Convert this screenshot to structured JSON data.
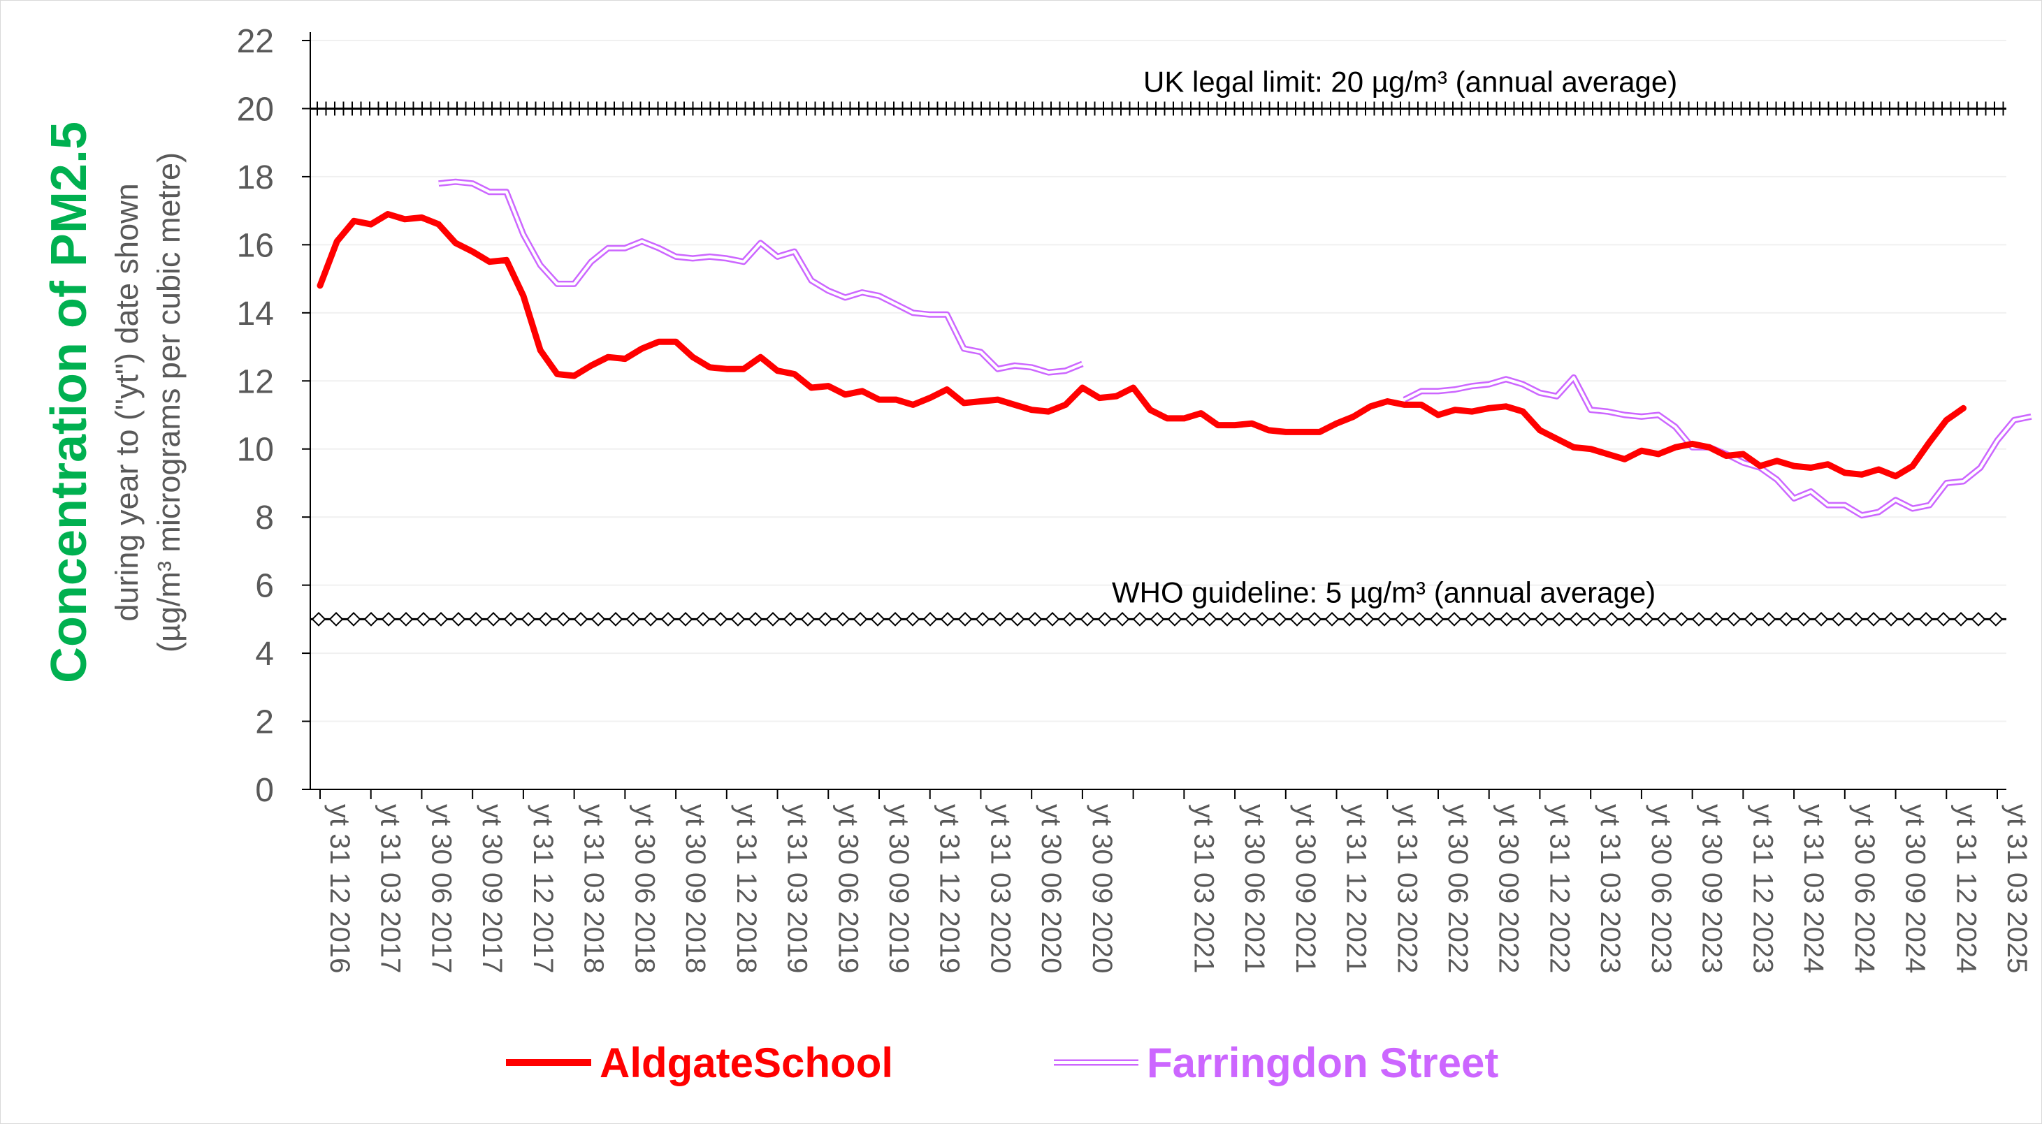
{
  "chart_data": {
    "type": "line",
    "title": "Concentration of PM2.5",
    "ylabel_line1": "during year to (\"yt\") date shown",
    "ylabel_line2": "(µg/m³ micrograms per cubic metre)",
    "ylim": [
      0,
      22
    ],
    "yticks": [
      0,
      2,
      4,
      6,
      8,
      10,
      12,
      14,
      16,
      18,
      20,
      22
    ],
    "grid": true,
    "legend_position": "bottom",
    "x_labels": [
      "yt 31 12 2016",
      "yt 31 03 2017",
      "yt 30 06 2017",
      "yt 30 09 2017",
      "yt 31 12 2017",
      "yt 31 03 2018",
      "yt 30 06 2018",
      "yt 30 09 2018",
      "yt 31 12 2018",
      "yt 31 03 2019",
      "yt 30 06 2019",
      "yt 30 09 2019",
      "yt 31 12 2019",
      "yt 31 03 2020",
      "yt 30 06 2020",
      "yt 30 09 2020",
      "yt 31 03 2021",
      "yt 30 06 2021",
      "yt 30 09 2021",
      "yt 31 12 2021",
      "yt 31 03 2022",
      "yt 30 06 2022",
      "yt 30 09 2022",
      "yt 31 12 2022",
      "yt 31 03 2023",
      "yt 30 06 2023",
      "yt 30 09 2023",
      "yt 31 12 2023",
      "yt 31 03 2024",
      "yt 30 06 2024",
      "yt 30 09 2024",
      "yt 31 12 2024",
      "yt 31 03 2025"
    ],
    "x_label_month_index": [
      0,
      3,
      6,
      9,
      12,
      15,
      18,
      21,
      24,
      27,
      30,
      33,
      36,
      39,
      42,
      45,
      51,
      54,
      57,
      60,
      63,
      66,
      69,
      72,
      75,
      78,
      81,
      84,
      87,
      90,
      93,
      96,
      99
    ],
    "x_month_count": 100,
    "series": [
      {
        "name": "AldgateSchool",
        "color": "#ff0000",
        "style": "thick-solid",
        "start_index": 0,
        "values": [
          14.8,
          16.1,
          16.7,
          16.6,
          16.9,
          16.75,
          16.8,
          16.6,
          16.05,
          15.8,
          15.5,
          15.55,
          14.5,
          12.9,
          12.2,
          12.15,
          12.45,
          12.7,
          12.65,
          12.95,
          13.15,
          13.15,
          12.7,
          12.4,
          12.35,
          12.35,
          12.7,
          12.3,
          12.2,
          11.8,
          11.85,
          11.6,
          11.7,
          11.45,
          11.45,
          11.3,
          11.5,
          11.75,
          11.35,
          11.4,
          11.45,
          11.3,
          11.15,
          11.1,
          11.3,
          11.8,
          11.5,
          11.55,
          11.8,
          11.15,
          10.9,
          10.9,
          11.05,
          10.7,
          10.7,
          10.75,
          10.55,
          10.5,
          10.5,
          10.5,
          10.75,
          10.95,
          11.25,
          11.4,
          11.3,
          11.3,
          11.0,
          11.15,
          11.1,
          11.2,
          11.25,
          11.1,
          10.55,
          10.3,
          10.05,
          10.0,
          9.85,
          9.7,
          9.95,
          9.85,
          10.05,
          10.15,
          10.05,
          9.8,
          9.85,
          9.5,
          9.65,
          9.5,
          9.45,
          9.55,
          9.3,
          9.25,
          9.4,
          9.2,
          9.5,
          10.2,
          10.85,
          11.2
        ]
      },
      {
        "name": "Farringdon Street",
        "color": "#cc66ff",
        "style": "double-line",
        "start_index": 7,
        "values": [
          17.8,
          17.85,
          17.8,
          17.55,
          17.55,
          16.3,
          15.4,
          14.85,
          14.85,
          15.5,
          15.9,
          15.9,
          16.1,
          15.9,
          15.65,
          15.6,
          15.65,
          15.6,
          15.5,
          16.05,
          15.65,
          15.8,
          14.95,
          14.65,
          14.45,
          14.6,
          14.5,
          14.25,
          14.0,
          13.95,
          13.95,
          12.95,
          12.85,
          12.35,
          12.45,
          12.4,
          12.25,
          12.3,
          12.5,
          null,
          null,
          null,
          null,
          null,
          null,
          null,
          null,
          null,
          null,
          null,
          null,
          null,
          null,
          null,
          null,
          null,
          null,
          11.45,
          11.7,
          11.7,
          11.75,
          11.85,
          11.9,
          12.05,
          11.9,
          11.65,
          11.55,
          12.1,
          11.15,
          11.1,
          11.0,
          10.95,
          11.0,
          10.65,
          10.05,
          10.05,
          9.85,
          9.6,
          9.45,
          9.1,
          8.55,
          8.75,
          8.35,
          8.35,
          8.05,
          8.15,
          8.5,
          8.25,
          8.35,
          9.0,
          9.05,
          9.45,
          10.25,
          10.85,
          10.95
        ]
      }
    ],
    "reference_lines": [
      {
        "value": 20,
        "label": "UK legal limit:  20 µg/m³ (annual average)",
        "color": "#000000",
        "marker": "plus"
      },
      {
        "value": 5,
        "label": "WHO guideline:  5 µg/m³ (annual average)",
        "color": "#000000",
        "marker": "diamond"
      }
    ],
    "colors": {
      "title": "#00b050",
      "axis_text": "#595959",
      "gridline": "#f0f0f0",
      "axis_line": "#000000"
    }
  }
}
